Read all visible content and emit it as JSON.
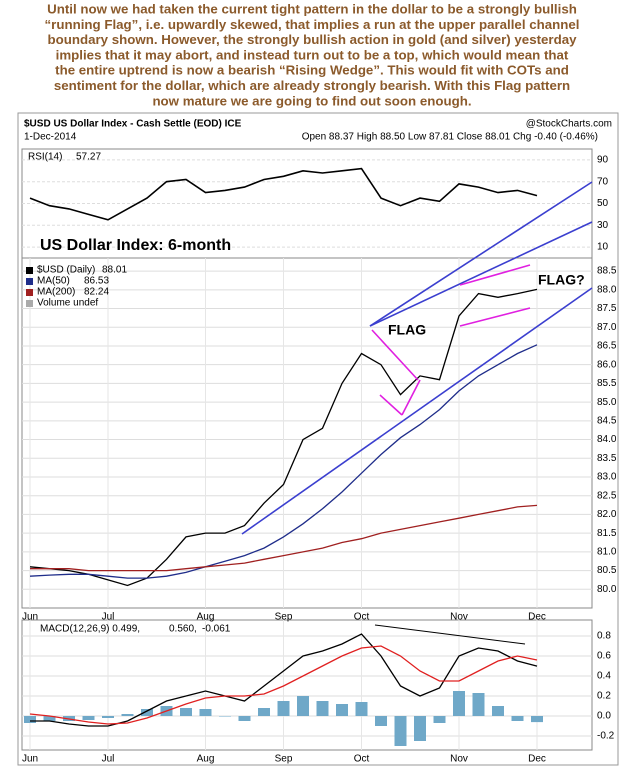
{
  "commentary": [
    "Until now we had taken the current tight pattern in the dollar to be a strongly bullish",
    "“running Flag”, i.e. upwardly skewed, that implies a run at the upper parallel channel",
    "boundary shown. However, the strongly bullish action in gold (and silver) yesterday",
    "implies that it may abort, and instead turn out to be a top, which would mean that",
    "the entire uptrend is now a bearish “Rising Wedge”. This would fit with COTs and",
    "sentiment for the dollar, which are already strongly bearish. With this Flag pattern",
    "now mature we are going to find out soon enough."
  ],
  "header": {
    "symbol": "$USD US Dollar Index - Cash Settle (EOD) ICE",
    "source": "@StockCharts.com",
    "date": "1-Dec-2014",
    "quote": "Open 88.37 High 88.50 Low 87.81 Close 88.01 Chg -0.40 (-0.46%)"
  },
  "chart_data": [
    {
      "type": "line",
      "panel": "rsi",
      "ylim": [
        0,
        100
      ],
      "yticks": [
        90,
        70,
        50,
        30,
        10
      ],
      "grid": true,
      "series": [
        {
          "name": "RSI(14)",
          "color": "#000000",
          "values": [
            55,
            48,
            45,
            40,
            35,
            45,
            55,
            70,
            72,
            60,
            62,
            65,
            72,
            75,
            80,
            78,
            80,
            82,
            55,
            48,
            55,
            52,
            68,
            65,
            60,
            62,
            57.27
          ]
        }
      ]
    },
    {
      "type": "line",
      "panel": "price",
      "title": "US Dollar Index: 6-month",
      "annotations": [
        "FLAG",
        "FLAG?"
      ],
      "volume_label": "Volume undef",
      "categories": [
        "Jun",
        null,
        null,
        null,
        "Jul",
        null,
        null,
        null,
        null,
        "Aug",
        null,
        null,
        null,
        "Sep",
        null,
        null,
        null,
        "Oct",
        null,
        null,
        null,
        null,
        "Nov",
        null,
        null,
        null,
        "Dec"
      ],
      "ylim": [
        79.5,
        88.85
      ],
      "yticks": [
        {
          "value": 80,
          "label": "80.0"
        },
        80.5,
        {
          "value": 81,
          "label": "81.0"
        },
        81.5,
        {
          "value": 82,
          "label": "82.0"
        },
        82.5,
        {
          "value": 83,
          "label": "83.0"
        },
        83.5,
        {
          "value": 84,
          "label": "84.0"
        },
        84.5,
        {
          "value": 85,
          "label": "85.0"
        },
        85.5,
        {
          "value": 86,
          "label": "86.0"
        },
        86.5,
        {
          "value": 87,
          "label": "87.0"
        },
        87.5,
        {
          "value": 88,
          "label": "88.0"
        },
        88.5
      ],
      "grid": true,
      "series": [
        {
          "name": "$USD (Daily)",
          "color": "#000000",
          "values": [
            80.6,
            80.55,
            80.5,
            80.4,
            80.25,
            80.1,
            80.3,
            80.8,
            81.4,
            81.5,
            81.5,
            81.7,
            82.3,
            82.8,
            84.0,
            84.3,
            85.5,
            86.3,
            86.0,
            85.2,
            85.7,
            85.6,
            87.3,
            87.9,
            87.8,
            87.9,
            88.01
          ]
        },
        {
          "name": "MA(50)",
          "color": "#1f2d8a",
          "values": [
            80.35,
            80.38,
            80.4,
            80.4,
            80.35,
            80.3,
            80.3,
            80.35,
            80.45,
            80.6,
            80.75,
            80.9,
            81.1,
            81.4,
            81.75,
            82.15,
            82.6,
            83.1,
            83.6,
            84.05,
            84.4,
            84.8,
            85.3,
            85.7,
            86.0,
            86.3,
            86.53
          ]
        },
        {
          "name": "MA(200)",
          "color": "#a02020",
          "values": [
            80.55,
            80.55,
            80.55,
            80.5,
            80.5,
            80.5,
            80.5,
            80.5,
            80.55,
            80.6,
            80.65,
            80.7,
            80.8,
            80.9,
            81.0,
            81.1,
            81.25,
            81.35,
            81.5,
            81.6,
            81.7,
            81.8,
            81.9,
            82.0,
            82.1,
            82.2,
            82.24
          ]
        }
      ]
    },
    {
      "type": "line",
      "panel": "macd",
      "legend": [
        "MACD(12,26,9) 0.499,",
        "0.560,",
        "-0.061"
      ],
      "categories": [
        "Jun",
        null,
        null,
        null,
        "Jul",
        null,
        null,
        null,
        null,
        "Aug",
        null,
        null,
        null,
        "Sep",
        null,
        null,
        null,
        "Oct",
        null,
        null,
        null,
        null,
        "Nov",
        null,
        null,
        null,
        "Dec"
      ],
      "ylim": [
        -0.34,
        0.96
      ],
      "yticks": [
        0.8,
        0.6,
        0.4,
        0.2,
        {
          "value": 0,
          "label": "0.0"
        },
        -0.2
      ],
      "grid": true,
      "series": [
        {
          "name": "Histogram",
          "kind": "bar",
          "color": "#6fa8c8",
          "values": [
            -0.07,
            -0.05,
            -0.05,
            -0.04,
            -0.02,
            0.02,
            0.07,
            0.1,
            0.08,
            0.07,
            0,
            -0.05,
            0.08,
            0.15,
            0.2,
            0.15,
            0.12,
            0.14,
            -0.1,
            -0.3,
            -0.25,
            -0.07,
            0.25,
            0.23,
            0.1,
            -0.05,
            -0.061
          ]
        },
        {
          "name": "MACD",
          "color": "#000000",
          "values": [
            -0.05,
            -0.05,
            -0.08,
            -0.1,
            -0.1,
            -0.05,
            0.05,
            0.15,
            0.2,
            0.25,
            0.2,
            0.15,
            0.3,
            0.45,
            0.6,
            0.65,
            0.72,
            0.82,
            0.6,
            0.3,
            0.2,
            0.28,
            0.6,
            0.68,
            0.65,
            0.55,
            0.499
          ]
        },
        {
          "name": "Signal",
          "color": "#e02020",
          "values": [
            0.02,
            0,
            -0.03,
            -0.06,
            -0.08,
            -0.07,
            -0.02,
            0.05,
            0.12,
            0.18,
            0.2,
            0.2,
            0.22,
            0.3,
            0.4,
            0.5,
            0.6,
            0.68,
            0.7,
            0.6,
            0.45,
            0.35,
            0.35,
            0.45,
            0.55,
            0.6,
            0.56
          ]
        }
      ]
    }
  ]
}
